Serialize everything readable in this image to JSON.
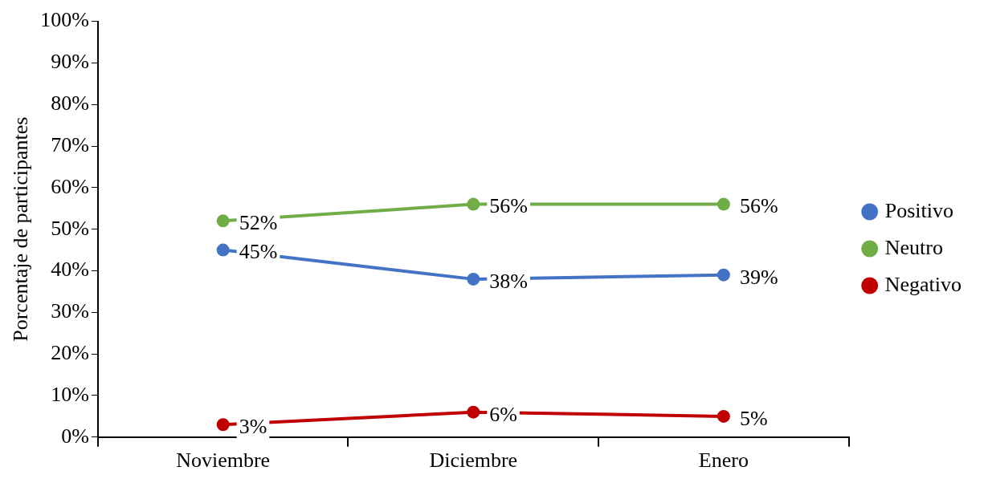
{
  "chart_data": {
    "type": "line",
    "categories": [
      "Noviembre",
      "Diciembre",
      "Enero"
    ],
    "ylabel": "Porcentaje de participantes",
    "series": [
      {
        "name": "Positivo",
        "color": "#4472c4",
        "values": [
          45,
          38,
          39
        ],
        "value_labels": [
          "45%",
          "38%",
          "39%"
        ]
      },
      {
        "name": "Neutro",
        "color": "#70ad47",
        "values": [
          52,
          56,
          56
        ],
        "value_labels": [
          "52%",
          "56%",
          "56%"
        ]
      },
      {
        "name": "Negativo",
        "color": "#c00000",
        "values": [
          3,
          6,
          5
        ],
        "value_labels": [
          "3%",
          "6%",
          "5%"
        ]
      }
    ],
    "ylim": [
      0,
      100
    ],
    "yticks": [
      {
        "value": 0,
        "label": "0%"
      },
      {
        "value": 10,
        "label": "10%"
      },
      {
        "value": 20,
        "label": "20%"
      },
      {
        "value": 30,
        "label": "30%"
      },
      {
        "value": 40,
        "label": "40%"
      },
      {
        "value": 50,
        "label": "50%"
      },
      {
        "value": 60,
        "label": "60%"
      },
      {
        "value": 70,
        "label": "70%"
      },
      {
        "value": 80,
        "label": "80%"
      },
      {
        "value": 90,
        "label": "90%"
      },
      {
        "value": 100,
        "label": "100%"
      }
    ],
    "grid": false,
    "legend": "right",
    "marker": "circle",
    "line_style": "solid"
  }
}
